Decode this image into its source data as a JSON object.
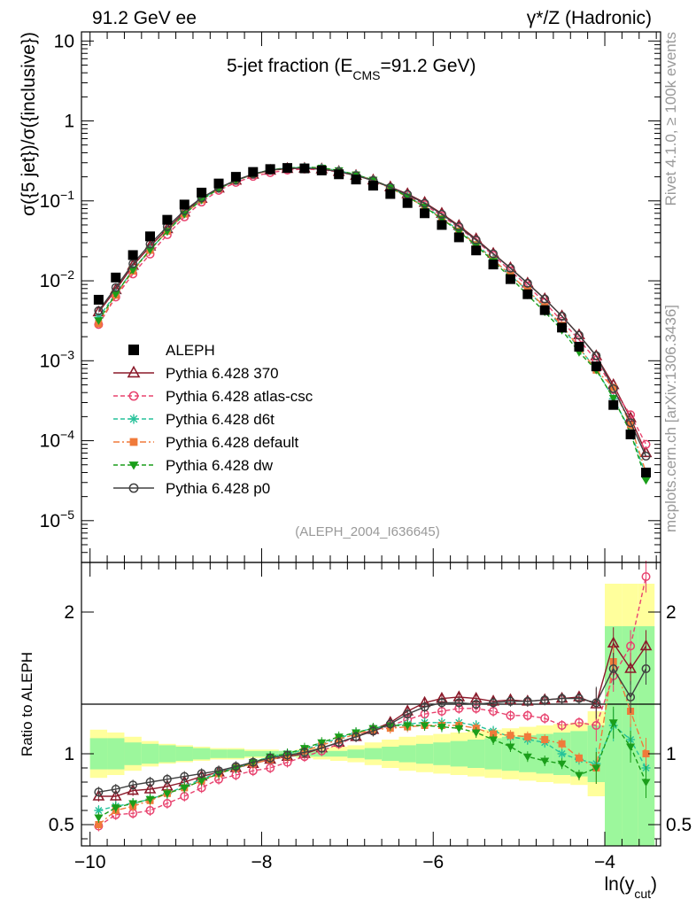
{
  "header": {
    "left_title": "91.2 GeV ee",
    "right_title": "γ*/Z (Hadronic)"
  },
  "side_labels": {
    "rivet": "Rivet 4.1.0, ≥ 100k events",
    "mcplots": "mcplots.cern.ch [arXiv:1306.3436]"
  },
  "watermark": "(ALEPH_2004_I636645)",
  "chart_data": [
    {
      "type": "scatter",
      "title_main": "5-jet fraction (E",
      "title_sub": "CMS",
      "title_tail": "=91.2 GeV)",
      "ylabel": "σ({5 jet})/σ({inclusive})",
      "yscale": "log",
      "ylim": [
        3e-06,
        13
      ],
      "xlim": [
        -10.1,
        -3.35
      ],
      "ytick_labels": [
        {
          "value": 1e-05,
          "base": "10",
          "exp": "−5"
        },
        {
          "value": 0.0001,
          "base": "10",
          "exp": "−4"
        },
        {
          "value": 0.001,
          "base": "10",
          "exp": "−3"
        },
        {
          "value": 0.01,
          "base": "10",
          "exp": "−2"
        },
        {
          "value": 0.1,
          "base": "10",
          "exp": "−1"
        },
        {
          "value": 1,
          "base": "1",
          "exp": ""
        },
        {
          "value": 10,
          "base": "10",
          "exp": ""
        }
      ],
      "x": [
        -9.9,
        -9.7,
        -9.5,
        -9.3,
        -9.1,
        -8.9,
        -8.7,
        -8.5,
        -8.3,
        -8.1,
        -7.9,
        -7.7,
        -7.5,
        -7.3,
        -7.1,
        -6.9,
        -6.7,
        -6.5,
        -6.3,
        -6.1,
        -5.9,
        -5.7,
        -5.5,
        -5.3,
        -5.1,
        -4.9,
        -4.7,
        -4.5,
        -4.3,
        -4.1,
        -3.9,
        -3.7,
        -3.52
      ],
      "data_series": {
        "name": "ALEPH",
        "values": [
          0.0058,
          0.011,
          0.021,
          0.036,
          0.058,
          0.09,
          0.127,
          0.165,
          0.2,
          0.23,
          0.25,
          0.258,
          0.255,
          0.24,
          0.215,
          0.185,
          0.155,
          0.122,
          0.094,
          0.07,
          0.05,
          0.035,
          0.024,
          0.016,
          0.0105,
          0.0068,
          0.0043,
          0.0026,
          0.0015,
          0.00085,
          0.00028,
          0.00012,
          4e-05
        ]
      },
      "legend": [
        {
          "label": "ALEPH",
          "color": "#000000",
          "marker": "square",
          "dash": "none"
        },
        {
          "label": "Pythia 6.428 370",
          "color": "#8b1a2a",
          "marker": "triangle",
          "dash": "solid"
        },
        {
          "label": "Pythia 6.428 atlas-csc",
          "color": "#e8436f",
          "marker": "circle-open",
          "dash": "dashed"
        },
        {
          "label": "Pythia 6.428 d6t",
          "color": "#26c29a",
          "marker": "star",
          "dash": "dashed"
        },
        {
          "label": "Pythia 6.428 default",
          "color": "#f07a3a",
          "marker": "square-filled",
          "dash": "dashdot"
        },
        {
          "label": "Pythia 6.428 dw",
          "color": "#1a9e1a",
          "marker": "triangle-down",
          "dash": "dashed"
        },
        {
          "label": "Pythia 6.428 p0",
          "color": "#404040",
          "marker": "circle-open",
          "dash": "solid"
        }
      ]
    },
    {
      "type": "line",
      "ylabel": "Ratio to ALEPH",
      "xlabel": "ln(y",
      "xlabel_sub": "cut",
      "xlabel_tail": ")",
      "ylim": [
        0.35,
        2.35
      ],
      "xlim": [
        -10.1,
        -3.35
      ],
      "ytick_labels": [
        "0.5",
        "1",
        "2"
      ],
      "xtick_labels": [
        "−10",
        "−8",
        "−6",
        "−4"
      ],
      "band_inner": [
        0.11,
        0.11,
        0.08,
        0.07,
        0.06,
        0.05,
        0.04,
        0.03,
        0.03,
        0.02,
        0.02,
        0.02,
        0.02,
        0.02,
        0.02,
        0.03,
        0.04,
        0.05,
        0.06,
        0.07,
        0.08,
        0.09,
        0.1,
        0.11,
        0.12,
        0.13,
        0.14,
        0.15,
        0.16,
        0.2,
        0.9,
        0.9,
        0.9
      ],
      "band_outer": [
        0.17,
        0.15,
        0.12,
        0.09,
        0.07,
        0.06,
        0.05,
        0.04,
        0.04,
        0.03,
        0.03,
        0.02,
        0.03,
        0.04,
        0.05,
        0.06,
        0.08,
        0.1,
        0.12,
        0.13,
        0.14,
        0.15,
        0.16,
        0.17,
        0.18,
        0.19,
        0.2,
        0.21,
        0.22,
        0.3,
        1.2,
        1.2,
        1.2
      ],
      "series": [
        {
          "name": "Pythia 6.428 370",
          "values": [
            0.7,
            0.7,
            0.74,
            0.75,
            0.77,
            0.8,
            0.84,
            0.87,
            0.9,
            0.93,
            0.96,
            0.98,
            1.0,
            1.04,
            1.08,
            1.12,
            1.17,
            1.22,
            1.3,
            1.36,
            1.39,
            1.4,
            1.39,
            1.37,
            1.38,
            1.37,
            1.38,
            1.39,
            1.4,
            1.35,
            1.78,
            1.6,
            1.76
          ]
        },
        {
          "name": "Pythia 6.428 atlas-csc",
          "values": [
            0.49,
            0.57,
            0.58,
            0.6,
            0.65,
            0.7,
            0.76,
            0.82,
            0.85,
            0.88,
            0.9,
            0.94,
            0.98,
            1.02,
            1.07,
            1.12,
            1.16,
            1.2,
            1.24,
            1.28,
            1.3,
            1.32,
            1.32,
            1.3,
            1.27,
            1.27,
            1.25,
            1.2,
            1.22,
            1.2,
            1.55,
            1.76,
            2.25
          ]
        },
        {
          "name": "Pythia 6.428 d6t",
          "values": [
            0.6,
            0.63,
            0.65,
            0.68,
            0.72,
            0.77,
            0.82,
            0.87,
            0.9,
            0.94,
            0.98,
            1.0,
            1.03,
            1.07,
            1.11,
            1.15,
            1.18,
            1.2,
            1.21,
            1.22,
            1.22,
            1.22,
            1.2,
            1.16,
            1.12,
            1.1,
            1.08,
            1.0,
            0.96,
            0.93,
            1.2,
            1.1,
            0.9
          ]
        },
        {
          "name": "Pythia 6.428 default",
          "values": [
            0.5,
            0.6,
            0.63,
            0.67,
            0.72,
            0.76,
            0.81,
            0.86,
            0.9,
            0.93,
            0.96,
            0.98,
            1.02,
            1.06,
            1.1,
            1.14,
            1.17,
            1.18,
            1.19,
            1.2,
            1.2,
            1.2,
            1.18,
            1.14,
            1.13,
            1.12,
            1.1,
            1.07,
            0.97,
            0.9,
            1.65,
            1.3,
            1.0
          ]
        },
        {
          "name": "Pythia 6.428 dw",
          "values": [
            0.55,
            0.62,
            0.65,
            0.68,
            0.72,
            0.76,
            0.81,
            0.86,
            0.9,
            0.94,
            0.98,
            1.0,
            1.04,
            1.08,
            1.12,
            1.15,
            1.18,
            1.2,
            1.2,
            1.2,
            1.19,
            1.18,
            1.15,
            1.1,
            1.05,
            0.98,
            0.95,
            0.93,
            0.85,
            0.9,
            1.22,
            1.05,
            0.8
          ]
        },
        {
          "name": "Pythia 6.428 p0",
          "values": [
            0.73,
            0.75,
            0.78,
            0.8,
            0.82,
            0.84,
            0.86,
            0.88,
            0.91,
            0.94,
            0.97,
            0.99,
            1.01,
            1.04,
            1.08,
            1.12,
            1.16,
            1.21,
            1.28,
            1.33,
            1.36,
            1.36,
            1.35,
            1.36,
            1.37,
            1.37,
            1.38,
            1.39,
            1.39,
            1.36,
            1.6,
            1.4,
            1.6
          ]
        }
      ]
    }
  ]
}
